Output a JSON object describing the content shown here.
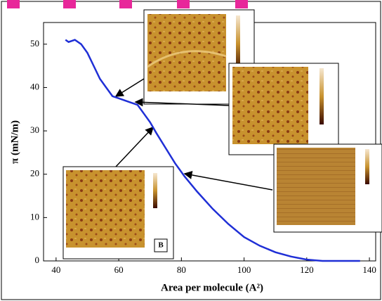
{
  "chart_data": {
    "type": "line",
    "xlabel": "Area per molecule (A²)",
    "ylabel": "π (mN/m)",
    "inset_label": "B",
    "x": [
      43,
      44,
      46,
      48,
      50,
      52,
      54,
      56,
      58,
      60,
      62,
      64,
      66,
      68,
      70,
      72,
      75,
      78,
      81,
      85,
      90,
      95,
      100,
      105,
      110,
      115,
      120,
      125,
      130,
      137
    ],
    "series": [
      {
        "color": "#1f2fd6",
        "values": [
          51,
          50.5,
          51,
          50,
          48,
          45,
          42,
          40,
          38,
          37.5,
          37,
          36.5,
          36,
          34,
          32,
          29.5,
          26,
          22.5,
          19.5,
          16,
          12,
          8.5,
          5.5,
          3.5,
          2,
          1,
          0.3,
          0,
          0,
          0
        ]
      }
    ],
    "xlim": [
      36,
      142
    ],
    "xticks": [
      40,
      60,
      80,
      100,
      120,
      140
    ],
    "ylim": [
      0,
      55
    ],
    "yticks": [
      0,
      10,
      20,
      30,
      40,
      50
    ]
  }
}
